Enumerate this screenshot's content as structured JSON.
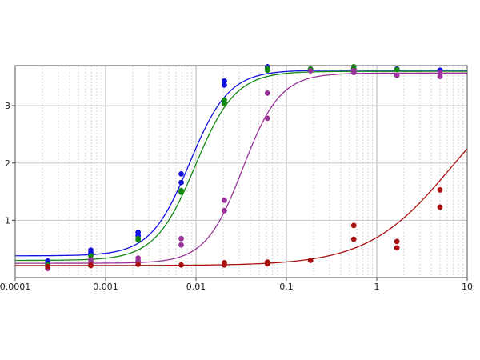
{
  "chart_data": {
    "type": "scatter",
    "title": "",
    "xlabel": "",
    "ylabel": "",
    "xscale": "log",
    "xlim": [
      0.0001,
      10
    ],
    "ylim": [
      0,
      3.7
    ],
    "grid": true,
    "legend": "none",
    "x_tick_labels": [
      "0.0001",
      "0.001",
      "0.01",
      "0.1",
      "1",
      "10"
    ],
    "x_tick_values": [
      0.0001,
      0.001,
      0.01,
      0.1,
      1,
      10
    ],
    "y_tick_labels": [
      "1",
      "2",
      "3"
    ],
    "y_tick_values": [
      1,
      2,
      3
    ],
    "series": [
      {
        "color": "#1111dd",
        "fit": {
          "bottom": 0.38,
          "top": 3.62,
          "ec50": 0.0085,
          "hill": 2.0
        },
        "points": [
          [
            0.000229,
            0.29
          ],
          [
            0.000229,
            0.24
          ],
          [
            0.000686,
            0.48
          ],
          [
            0.000686,
            0.43
          ],
          [
            0.00229,
            0.79
          ],
          [
            0.00229,
            0.73
          ],
          [
            0.00686,
            1.81
          ],
          [
            0.00686,
            1.66
          ],
          [
            0.0206,
            3.43
          ],
          [
            0.0206,
            3.36
          ],
          [
            0.0617,
            3.68
          ],
          [
            0.0617,
            3.63
          ],
          [
            0.185,
            3.63
          ],
          [
            0.556,
            3.64
          ],
          [
            1.67,
            3.64
          ],
          [
            5.0,
            3.62
          ]
        ]
      },
      {
        "color": "#118811",
        "fit": {
          "bottom": 0.3,
          "top": 3.6,
          "ec50": 0.0098,
          "hill": 1.95
        },
        "points": [
          [
            0.000229,
            0.22
          ],
          [
            0.000686,
            0.38
          ],
          [
            0.00229,
            0.68
          ],
          [
            0.00229,
            0.66
          ],
          [
            0.00686,
            1.52
          ],
          [
            0.00686,
            1.49
          ],
          [
            0.0206,
            3.1
          ],
          [
            0.0206,
            3.04
          ],
          [
            0.0617,
            3.64
          ],
          [
            0.0617,
            3.62
          ],
          [
            0.185,
            3.64
          ],
          [
            0.556,
            3.68
          ],
          [
            1.67,
            3.63
          ]
        ]
      },
      {
        "color": "#993399",
        "fit": {
          "bottom": 0.25,
          "top": 3.57,
          "ec50": 0.033,
          "hill": 2.1
        },
        "points": [
          [
            0.000229,
            0.16
          ],
          [
            0.000229,
            0.19
          ],
          [
            0.000686,
            0.31
          ],
          [
            0.000686,
            0.27
          ],
          [
            0.00229,
            0.34
          ],
          [
            0.00229,
            0.29
          ],
          [
            0.00686,
            0.68
          ],
          [
            0.00686,
            0.57
          ],
          [
            0.0206,
            1.35
          ],
          [
            0.0206,
            1.17
          ],
          [
            0.0617,
            3.22
          ],
          [
            0.0617,
            2.78
          ],
          [
            0.185,
            3.61
          ],
          [
            0.556,
            3.58
          ],
          [
            0.556,
            3.61
          ],
          [
            1.67,
            3.53
          ],
          [
            5.0,
            3.57
          ],
          [
            5.0,
            3.51
          ]
        ]
      },
      {
        "color": "#aa1111",
        "fit": {
          "bottom": 0.21,
          "top": 3.6,
          "ec50": 6.5,
          "hill": 0.95
        },
        "points": [
          [
            0.000229,
            0.19
          ],
          [
            0.000686,
            0.22
          ],
          [
            0.000686,
            0.21
          ],
          [
            0.00229,
            0.23
          ],
          [
            0.00686,
            0.22
          ],
          [
            0.0206,
            0.26
          ],
          [
            0.0206,
            0.22
          ],
          [
            0.0617,
            0.27
          ],
          [
            0.0617,
            0.24
          ],
          [
            0.185,
            0.3
          ],
          [
            0.556,
            0.91
          ],
          [
            0.556,
            0.67
          ],
          [
            1.67,
            0.63
          ],
          [
            1.67,
            0.52
          ],
          [
            5.0,
            1.53
          ],
          [
            5.0,
            1.23
          ]
        ]
      }
    ]
  }
}
